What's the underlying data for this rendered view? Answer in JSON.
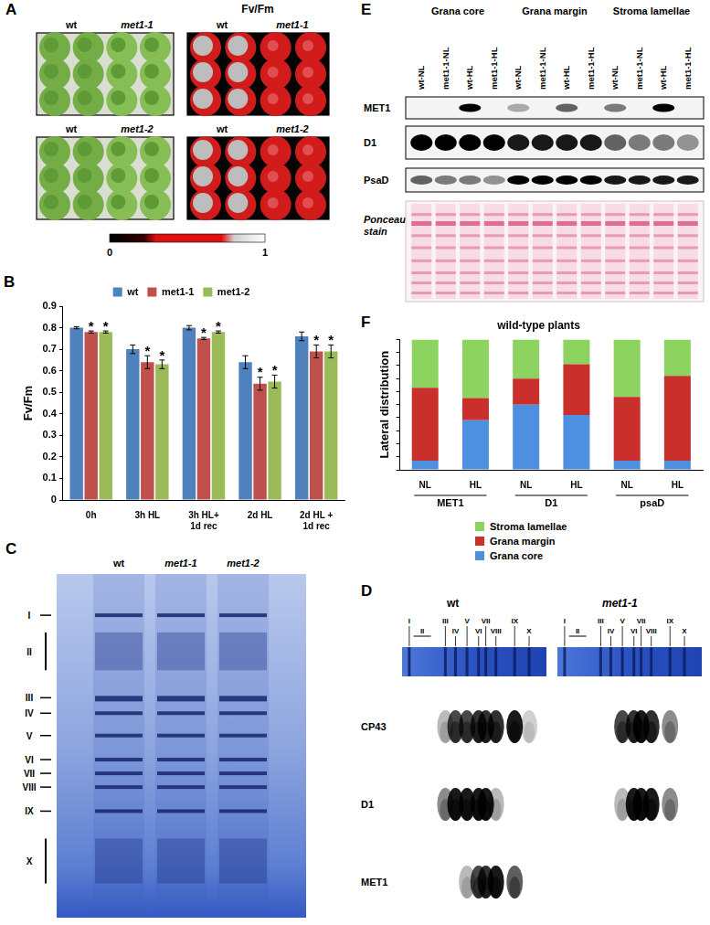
{
  "panels": {
    "A": {
      "label": "A",
      "heading": "Fv/Fm",
      "rows": [
        [
          "wt",
          "met1-1"
        ],
        [
          "wt",
          "met1-2"
        ]
      ],
      "colorbar": {
        "range": [
          0,
          1
        ],
        "ticks": [
          0,
          1
        ]
      }
    },
    "C": {
      "label": "C",
      "lanes": [
        "wt",
        "met1-1",
        "met1-2"
      ],
      "bands": [
        "I",
        "II",
        "III",
        "IV",
        "V",
        "VI",
        "VII",
        "VIII",
        "IX",
        "X"
      ]
    },
    "D": {
      "label": "D",
      "bands": [
        "I",
        "II",
        "III",
        "IV",
        "V",
        "VI",
        "VII",
        "VIII",
        "IX",
        "X"
      ],
      "strips": [
        {
          "title": "wt",
          "rows": [
            {
              "name": "CP43",
              "spots": [
                0,
                0,
                0.3,
                0.8,
                0.8,
                0.9,
                0.9,
                0.9,
                1,
                0.2
              ]
            },
            {
              "name": "D1",
              "spots": [
                0,
                0,
                0.5,
                1,
                1,
                1,
                1,
                0.3,
                0,
                0
              ]
            },
            {
              "name": "MET1",
              "spots": [
                0,
                0,
                0,
                0,
                0.3,
                0.8,
                0.9,
                1,
                0.7,
                0
              ]
            }
          ]
        },
        {
          "title": "met1-1",
          "rows": [
            {
              "name": "CP43",
              "spots": [
                0,
                0,
                0,
                0,
                0.8,
                0.9,
                1,
                0.9,
                0.5,
                0
              ]
            },
            {
              "name": "D1",
              "spots": [
                0,
                0,
                0,
                0,
                0.3,
                1,
                1,
                1,
                0.5,
                0
              ]
            },
            {
              "name": "MET1",
              "spots": [
                0,
                0,
                0,
                0,
                0,
                0,
                0,
                0,
                0,
                0
              ]
            }
          ]
        }
      ]
    },
    "E": {
      "label": "E",
      "groups": [
        "Grana core",
        "Grana margin",
        "Stroma lamellae"
      ],
      "lanes": [
        "wt-NL",
        "met1-1-NL",
        "wt-HL",
        "met1-1-HL",
        "wt-NL",
        "met1-1-NL",
        "wt-HL",
        "met1-1-HL",
        "wt-NL",
        "met1-1-NL",
        "wt-HL",
        "met1-1-HL"
      ],
      "rows": [
        {
          "name": "MET1",
          "bands": [
            0,
            0,
            1,
            0,
            0.3,
            0,
            0.6,
            0,
            0.5,
            0,
            1,
            0
          ]
        },
        {
          "name": "D1",
          "bands": [
            1,
            1,
            1,
            1,
            0.9,
            0.9,
            0.9,
            0.9,
            0.6,
            0.5,
            0.5,
            0.4
          ]
        },
        {
          "name": "PsaD",
          "bands": [
            0.6,
            0.5,
            0.5,
            0.4,
            1,
            1,
            1,
            1,
            0.9,
            0.9,
            0.9,
            0.9
          ]
        }
      ],
      "stain": "Ponceau stain"
    }
  },
  "chart_data": [
    {
      "panel_label": "B",
      "type": "bar",
      "y_label": "Fv/Fm",
      "categories": [
        "0h",
        "3h HL",
        "3h HL+ 1d rec",
        "2d HL",
        "2d HL + 1d rec"
      ],
      "series": [
        {
          "name": "wt",
          "color": "#4f81bd",
          "values": [
            0.8,
            0.7,
            0.8,
            0.64,
            0.76
          ],
          "error": [
            0.005,
            0.02,
            0.01,
            0.03,
            0.02
          ]
        },
        {
          "name": "met1-1",
          "color": "#c0504d",
          "values": [
            0.78,
            0.64,
            0.75,
            0.54,
            0.69
          ],
          "error": [
            0.005,
            0.03,
            0.005,
            0.03,
            0.03
          ],
          "annotations": [
            "*",
            "*",
            "*",
            "*",
            "*"
          ]
        },
        {
          "name": "met1-2",
          "color": "#9bbb59",
          "values": [
            0.78,
            0.63,
            0.78,
            0.55,
            0.69
          ],
          "error": [
            0.005,
            0.02,
            0.005,
            0.03,
            0.03
          ],
          "annotations": [
            "*",
            "*",
            "*",
            "*",
            "*"
          ]
        }
      ],
      "ylim": [
        0,
        0.9
      ],
      "yticks": [
        0,
        0.1,
        0.2,
        0.3,
        0.4,
        0.5,
        0.6,
        0.7,
        0.8,
        0.9
      ],
      "grid": false,
      "legend": "top"
    },
    {
      "panel_label": "F",
      "type": "bar",
      "title": "wild-type plants",
      "y_label": "Lateral distribution",
      "categories": [
        "NL",
        "HL",
        "NL",
        "HL",
        "NL",
        "HL"
      ],
      "groups": [
        "MET1",
        "D1",
        "psaD"
      ],
      "series": [
        {
          "name": "Grana core",
          "color": "#4f8fdf",
          "values": [
            0.07,
            0.38,
            0.5,
            0.42,
            0.07,
            0.07
          ]
        },
        {
          "name": "Grana margin",
          "color": "#c9302c",
          "values": [
            0.56,
            0.17,
            0.2,
            0.39,
            0.49,
            0.65
          ]
        },
        {
          "name": "Stroma lamellae",
          "color": "#8dd35f",
          "values": [
            0.37,
            0.45,
            0.3,
            0.19,
            0.44,
            0.28
          ]
        }
      ],
      "stacked": true,
      "ylim": [
        0,
        1
      ],
      "yticks": [
        0,
        0.1,
        0.2,
        0.3,
        0.4,
        0.5,
        0.6,
        0.7,
        0.8,
        0.9,
        1
      ],
      "tick_labels": "x",
      "grid": false,
      "legend": "bottom"
    }
  ]
}
